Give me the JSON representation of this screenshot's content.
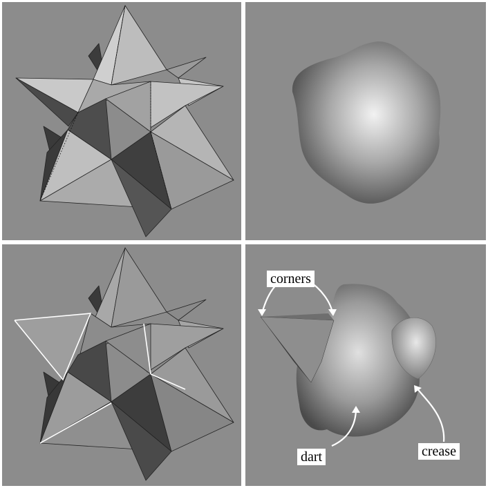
{
  "panels": {
    "top_left": {
      "name": "star polyhedron (control mesh)"
    },
    "top_right": {
      "name": "smooth subdivision surface"
    },
    "bottom_left": {
      "name": "star polyhedron with tagged edges"
    },
    "bottom_right": {
      "name": "subdivision surface with features"
    }
  },
  "annotations": {
    "corners": "corners",
    "dart": "dart",
    "crease": "crease"
  },
  "colors": {
    "background": "#8c8c8c",
    "face_light": "#c4c4c4",
    "face_mid": "#a8a8a8",
    "face_dark": "#4a4a4a",
    "tag_edge": "#ffffff"
  }
}
